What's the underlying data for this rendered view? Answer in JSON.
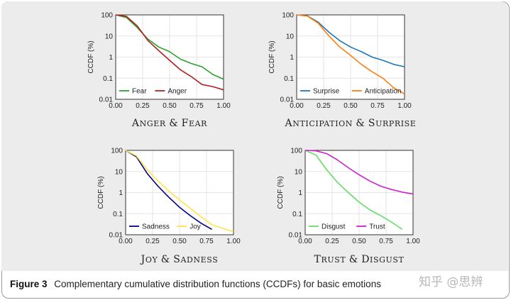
{
  "caption": {
    "label": "Figure 3",
    "text": "Complementary cumulative distribution functions (CCDFs) for basic emotions"
  },
  "watermark": "知乎 @思辨",
  "chart_data": [
    {
      "type": "line",
      "title": "Anger & Fear",
      "xlabel": "",
      "ylabel": "CCDF (%)",
      "y_scale": "log",
      "xlim": [
        0,
        1
      ],
      "ylim": [
        0.01,
        100
      ],
      "x_ticks": [
        "0.00",
        "0.25",
        "0.50",
        "0.75",
        "1.00"
      ],
      "y_ticks": [
        "0.01",
        "0.1",
        "1",
        "10",
        "100"
      ],
      "grid": true,
      "legend": "bottom-left",
      "series": [
        {
          "name": "Fear",
          "color": "#2ca02c",
          "x": [
            0.0,
            0.1,
            0.2,
            0.3,
            0.4,
            0.5,
            0.6,
            0.7,
            0.8,
            0.9,
            1.0
          ],
          "y": [
            100,
            75,
            25,
            7,
            3,
            1.8,
            0.8,
            0.5,
            0.35,
            0.15,
            0.09
          ]
        },
        {
          "name": "Anger",
          "color": "#b22222",
          "x": [
            0.0,
            0.1,
            0.2,
            0.3,
            0.4,
            0.5,
            0.6,
            0.7,
            0.8,
            0.9,
            1.0
          ],
          "y": [
            100,
            85,
            30,
            6,
            2,
            0.7,
            0.25,
            0.12,
            0.05,
            0.04,
            0.028
          ]
        }
      ]
    },
    {
      "type": "line",
      "title": "Anticipation & Surprise",
      "xlabel": "",
      "ylabel": "CCDF (%)",
      "y_scale": "log",
      "xlim": [
        0,
        1
      ],
      "ylim": [
        0.01,
        100
      ],
      "x_ticks": [
        "0.00",
        "0.25",
        "0.50",
        "0.75",
        "1.00"
      ],
      "y_ticks": [
        "0.01",
        "0.1",
        "1",
        "10",
        "100"
      ],
      "grid": true,
      "legend": "bottom-left",
      "series": [
        {
          "name": "Surprise",
          "color": "#1f77b4",
          "x": [
            0.0,
            0.1,
            0.2,
            0.3,
            0.4,
            0.5,
            0.6,
            0.7,
            0.8,
            0.9,
            1.0
          ],
          "y": [
            100,
            90,
            45,
            15,
            6,
            3,
            1.8,
            1,
            0.7,
            0.45,
            0.35
          ]
        },
        {
          "name": "Anticipation",
          "color": "#ff7f0e",
          "x": [
            0.0,
            0.1,
            0.2,
            0.3,
            0.4,
            0.5,
            0.6,
            0.7,
            0.8,
            0.9,
            1.0
          ],
          "y": [
            100,
            88,
            40,
            10,
            3,
            1.2,
            0.45,
            0.2,
            0.1,
            0.035,
            0.018
          ]
        }
      ]
    },
    {
      "type": "line",
      "title": "Joy & Sadness",
      "xlabel": "",
      "ylabel": "CCDF (%)",
      "y_scale": "log",
      "xlim": [
        0,
        1
      ],
      "ylim": [
        0.01,
        100
      ],
      "x_ticks": [
        "0.00",
        "0.25",
        "0.50",
        "0.75",
        "1.00"
      ],
      "y_ticks": [
        "0.01",
        "0.1",
        "1",
        "10",
        "100"
      ],
      "grid": true,
      "legend": "bottom-left",
      "series": [
        {
          "name": "Sadness",
          "color": "#00008b",
          "x": [
            0.0,
            0.1,
            0.2,
            0.3,
            0.4,
            0.5,
            0.6,
            0.7,
            0.8
          ],
          "y": [
            100,
            50,
            8,
            2,
            0.6,
            0.2,
            0.08,
            0.035,
            0.018
          ]
        },
        {
          "name": "Joy",
          "color": "#ffe44d",
          "x": [
            0.0,
            0.1,
            0.2,
            0.3,
            0.4,
            0.5,
            0.6,
            0.7,
            0.8,
            0.9,
            1.0
          ],
          "y": [
            100,
            55,
            12,
            3.5,
            1.2,
            0.45,
            0.18,
            0.07,
            0.03,
            0.02,
            0.014
          ]
        }
      ]
    },
    {
      "type": "line",
      "title": "Trust & Disgust",
      "xlabel": "",
      "ylabel": "CCDF (%)",
      "y_scale": "log",
      "xlim": [
        0,
        1
      ],
      "ylim": [
        0.01,
        100
      ],
      "x_ticks": [
        "0.00",
        "0.25",
        "0.50",
        "0.75",
        "1.00"
      ],
      "y_ticks": [
        "0.01",
        "0.1",
        "1",
        "10",
        "100"
      ],
      "grid": true,
      "legend": "bottom-left",
      "series": [
        {
          "name": "Disgust",
          "color": "#66dd66",
          "x": [
            0.0,
            0.1,
            0.2,
            0.3,
            0.4,
            0.5,
            0.6,
            0.7,
            0.8,
            0.9
          ],
          "y": [
            100,
            60,
            12,
            3,
            1,
            0.35,
            0.15,
            0.08,
            0.04,
            0.018
          ]
        },
        {
          "name": "Trust",
          "color": "#cc22cc",
          "x": [
            0.0,
            0.1,
            0.2,
            0.3,
            0.4,
            0.5,
            0.6,
            0.7,
            0.8,
            0.9,
            1.0
          ],
          "y": [
            100,
            95,
            70,
            35,
            15,
            7,
            3.5,
            2,
            1.4,
            1.05,
            0.85
          ]
        }
      ]
    }
  ]
}
